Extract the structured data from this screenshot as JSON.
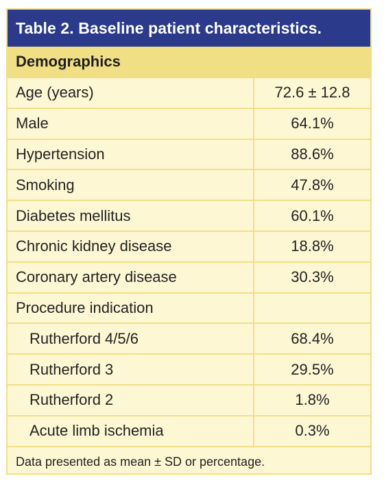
{
  "table": {
    "title": "Table 2. Baseline patient characteristics.",
    "section": "Demographics",
    "rows": [
      {
        "label": "Age (years)",
        "value": "72.6 ± 12.8"
      },
      {
        "label": "Male",
        "value": "64.1%"
      },
      {
        "label": "Hypertension",
        "value": "88.6%"
      },
      {
        "label": "Smoking",
        "value": "47.8%"
      },
      {
        "label": "Diabetes mellitus",
        "value": "60.1%"
      },
      {
        "label": "Chronic kidney disease",
        "value": "18.8%"
      },
      {
        "label": "Coronary artery disease",
        "value": "30.3%"
      },
      {
        "label": "Procedure indication",
        "value": ""
      },
      {
        "label": "Rutherford 4/5/6",
        "value": "68.4%"
      },
      {
        "label": "Rutherford 3",
        "value": "29.5%"
      },
      {
        "label": "Rutherford 2",
        "value": "1.8%"
      },
      {
        "label": "Acute limb ischemia",
        "value": "0.3%"
      }
    ],
    "footnote": "Data presented as mean ± SD or percentage."
  },
  "colors": {
    "title_background": "#2b3a8a",
    "section_background": "#f1df86",
    "body_background": "#fef7d4"
  }
}
